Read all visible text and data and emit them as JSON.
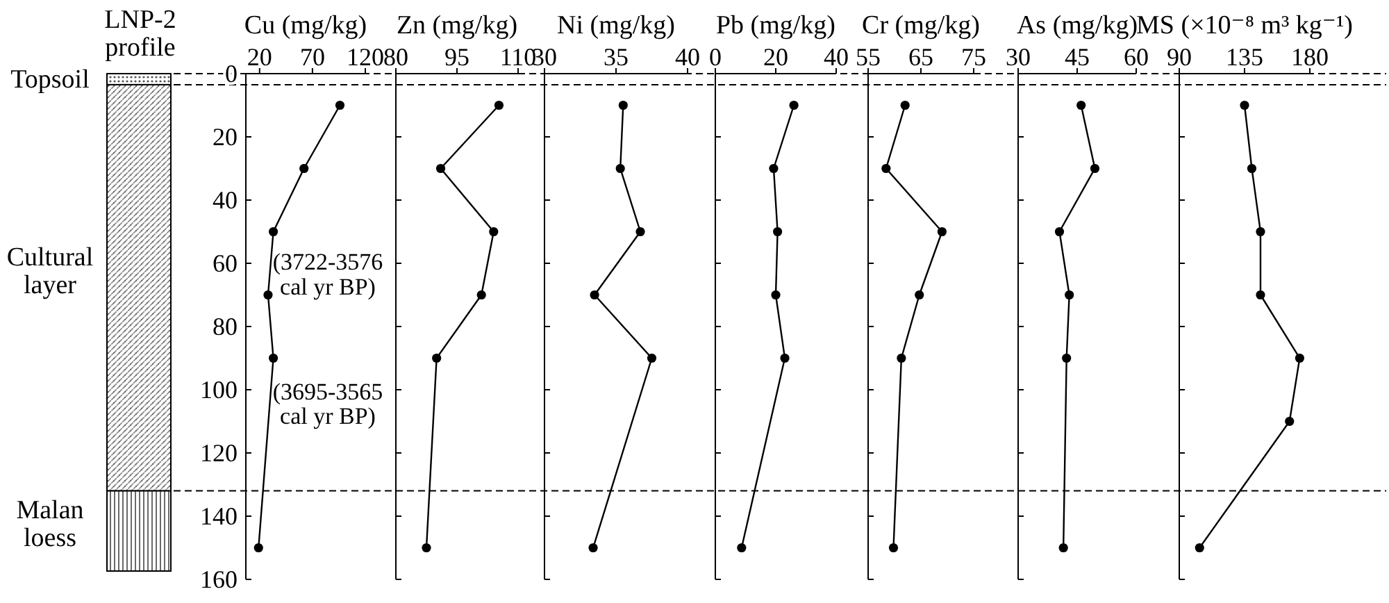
{
  "chart_data": [
    {
      "type": "line",
      "title": "Cu (mg/kg)",
      "ylim": [
        160,
        0
      ],
      "yticks": [
        0,
        20,
        40,
        60,
        80,
        100,
        120,
        140,
        160
      ],
      "xlim": [
        7,
        120
      ],
      "xticks": [
        20,
        70,
        120
      ],
      "marker": "circle",
      "line_style": "solid",
      "series": [
        {
          "color": "#000000",
          "x": [
            96,
            62,
            33,
            28,
            33,
            19
          ],
          "values": [
            10,
            30,
            50,
            70,
            90,
            150
          ]
        }
      ],
      "ref_lines": [
        {
          "axis": "y",
          "value": 0,
          "line_style": "dashed"
        },
        {
          "axis": "y",
          "value": 3.5,
          "line_style": "dashed"
        },
        {
          "axis": "y",
          "value": 132,
          "line_style": "dashed"
        }
      ],
      "annotations": [
        "LNP-2 profile",
        "Topsoil",
        "Cultural layer",
        "Malan loess",
        "(3722-3576 cal yr BP)",
        "(3695-3565 cal yr BP)"
      ]
    },
    {
      "type": "line",
      "title": "Zn (mg/kg)",
      "ylim": [
        160,
        0
      ],
      "yticks": [
        0,
        20,
        40,
        60,
        80,
        100,
        120,
        140,
        160
      ],
      "xlim": [
        80,
        110
      ],
      "xticks": [
        80,
        95,
        110
      ],
      "marker": "circle",
      "line_style": "solid",
      "tick_labels": "x",
      "series": [
        {
          "color": "#000000",
          "x": [
            105.3,
            91,
            104,
            101,
            90,
            87.5
          ],
          "values": [
            10,
            30,
            50,
            70,
            90,
            150
          ]
        }
      ]
    },
    {
      "type": "line",
      "title": "Ni (mg/kg)",
      "ylim": [
        160,
        0
      ],
      "yticks": [
        0,
        20,
        40,
        60,
        80,
        100,
        120,
        140,
        160
      ],
      "xlim": [
        30,
        40
      ],
      "xticks": [
        30,
        35,
        40
      ],
      "marker": "circle",
      "line_style": "solid",
      "tick_labels": "x",
      "series": [
        {
          "color": "#000000",
          "x": [
            35.5,
            35.3,
            36.7,
            33.5,
            37.5,
            33.4
          ],
          "values": [
            10,
            30,
            50,
            70,
            90,
            150
          ]
        }
      ]
    },
    {
      "type": "line",
      "title": "Pb (mg/kg)",
      "ylim": [
        160,
        0
      ],
      "yticks": [
        0,
        20,
        40,
        60,
        80,
        100,
        120,
        140,
        160
      ],
      "xlim": [
        0,
        40
      ],
      "xticks": [
        0,
        20,
        40
      ],
      "marker": "circle",
      "line_style": "solid",
      "tick_labels": "x",
      "series": [
        {
          "color": "#000000",
          "x": [
            26,
            19.3,
            20.6,
            20,
            23,
            8.7
          ],
          "values": [
            10,
            30,
            50,
            70,
            90,
            150
          ]
        }
      ]
    },
    {
      "type": "line",
      "title": "Cr (mg/kg)",
      "ylim": [
        160,
        0
      ],
      "yticks": [
        0,
        20,
        40,
        60,
        80,
        100,
        120,
        140,
        160
      ],
      "xlim": [
        55,
        75
      ],
      "xticks": [
        55,
        65,
        75
      ],
      "marker": "circle",
      "line_style": "solid",
      "tick_labels": "x",
      "series": [
        {
          "color": "#000000",
          "x": [
            62,
            58.4,
            69,
            64.7,
            61.3,
            59.8
          ],
          "values": [
            10,
            30,
            50,
            70,
            90,
            150
          ]
        }
      ]
    },
    {
      "type": "line",
      "title": "As (mg/kg)",
      "ylim": [
        160,
        0
      ],
      "yticks": [
        0,
        20,
        40,
        60,
        80,
        100,
        120,
        140,
        160
      ],
      "xlim": [
        30,
        60
      ],
      "xticks": [
        30,
        45,
        60
      ],
      "marker": "circle",
      "line_style": "solid",
      "tick_labels": "x",
      "series": [
        {
          "color": "#000000",
          "x": [
            46,
            49.5,
            40.5,
            43,
            42.3,
            41.5
          ],
          "values": [
            10,
            30,
            50,
            70,
            90,
            150
          ]
        }
      ]
    },
    {
      "type": "line",
      "title": "MS (×10⁻⁸ m³ kg⁻¹)",
      "ylim": [
        160,
        0
      ],
      "yticks": [
        0,
        20,
        40,
        60,
        80,
        100,
        120,
        140,
        160
      ],
      "xlim": [
        90,
        180
      ],
      "xticks": [
        90,
        135,
        180
      ],
      "marker": "circle",
      "line_style": "solid",
      "tick_labels": "x",
      "series": [
        {
          "color": "#000000",
          "x": [
            135,
            140,
            146,
            146,
            173,
            166,
            104
          ],
          "values": [
            10,
            30,
            50,
            70,
            90,
            110,
            150
          ]
        }
      ]
    }
  ]
}
